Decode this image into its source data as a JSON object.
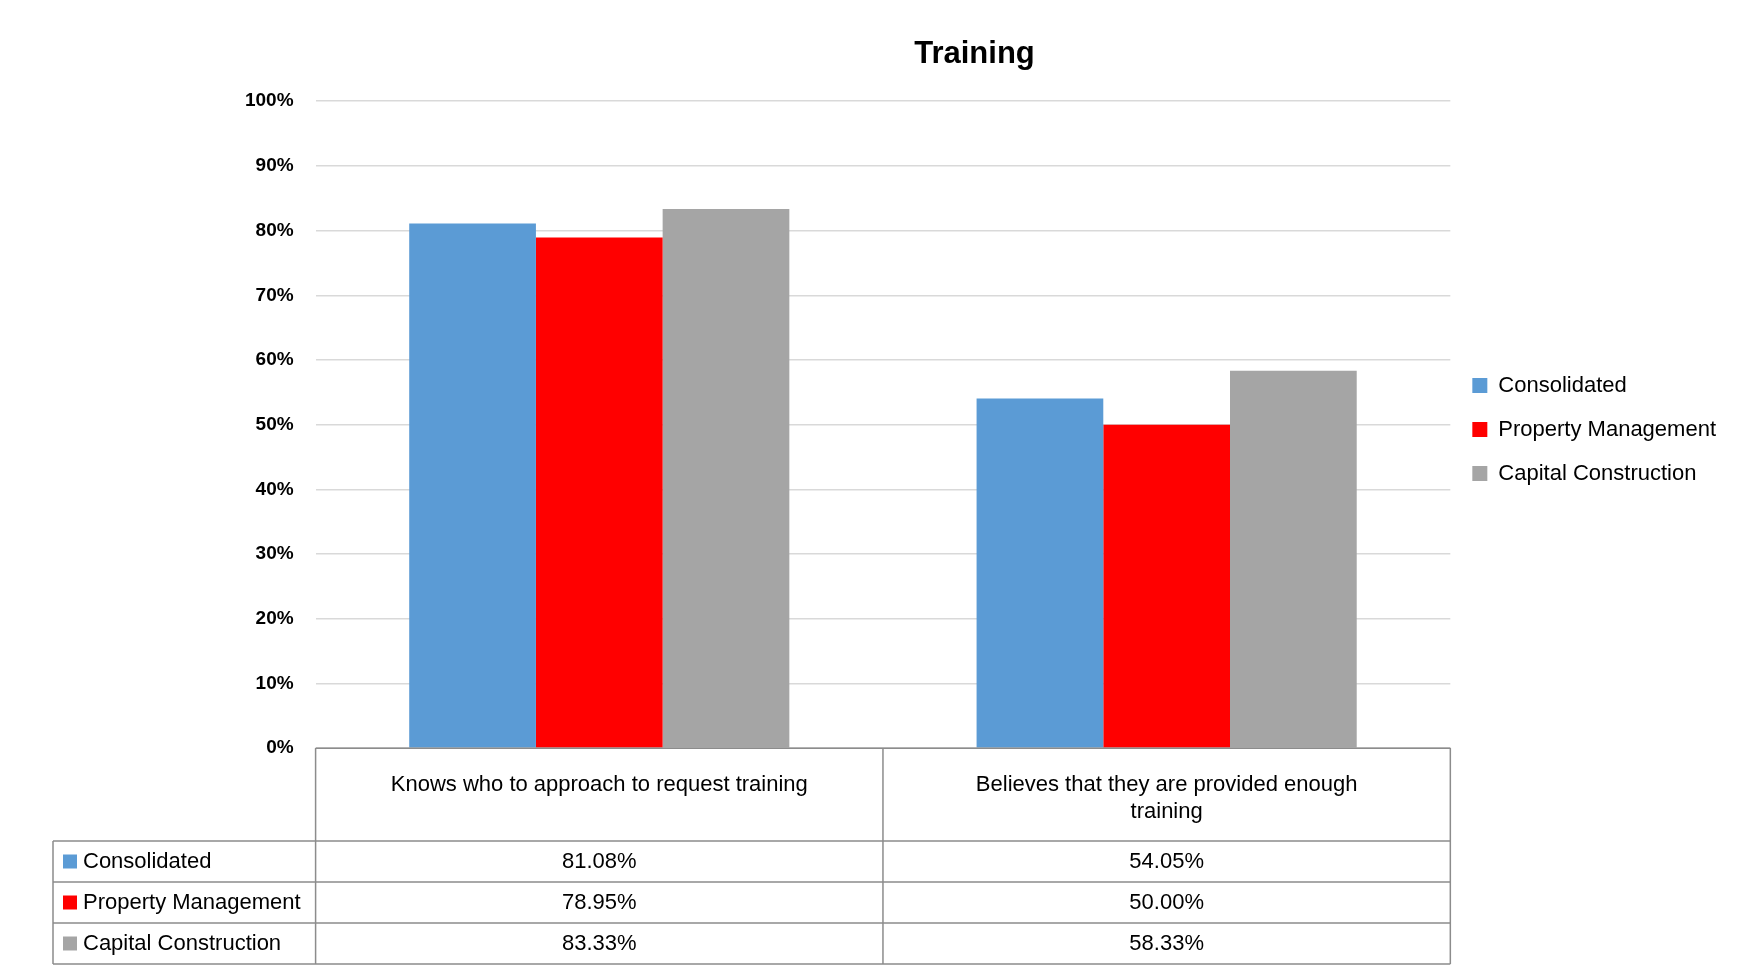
{
  "chart_data": {
    "type": "bar",
    "title": "Training",
    "categories": [
      "Knows who to approach to request training",
      "Believes that they are provided enough training"
    ],
    "series": [
      {
        "name": "Consolidated",
        "color": "#5b9bd5",
        "values": [
          81.08,
          54.05
        ],
        "value_labels": [
          "81.08%",
          "54.05%"
        ]
      },
      {
        "name": "Property Management",
        "color": "#ff0000",
        "values": [
          78.95,
          50.0
        ],
        "value_labels": [
          "78.95%",
          "50.00%"
        ]
      },
      {
        "name": "Capital Construction",
        "color": "#a5a5a5",
        "values": [
          83.33,
          58.33
        ],
        "value_labels": [
          "83.33%",
          "58.33%"
        ]
      }
    ],
    "ylim": [
      0,
      100
    ],
    "yticks": [
      {
        "value": 0,
        "label": "0%"
      },
      {
        "value": 10,
        "label": "10%"
      },
      {
        "value": 20,
        "label": "20%"
      },
      {
        "value": 30,
        "label": "30%"
      },
      {
        "value": 40,
        "label": "40%"
      },
      {
        "value": 50,
        "label": "50%"
      },
      {
        "value": 60,
        "label": "60%"
      },
      {
        "value": 70,
        "label": "70%"
      },
      {
        "value": 80,
        "label": "80%"
      },
      {
        "value": 90,
        "label": "90%"
      },
      {
        "value": 100,
        "label": "100%"
      }
    ],
    "grid": "y",
    "legend": "right"
  }
}
